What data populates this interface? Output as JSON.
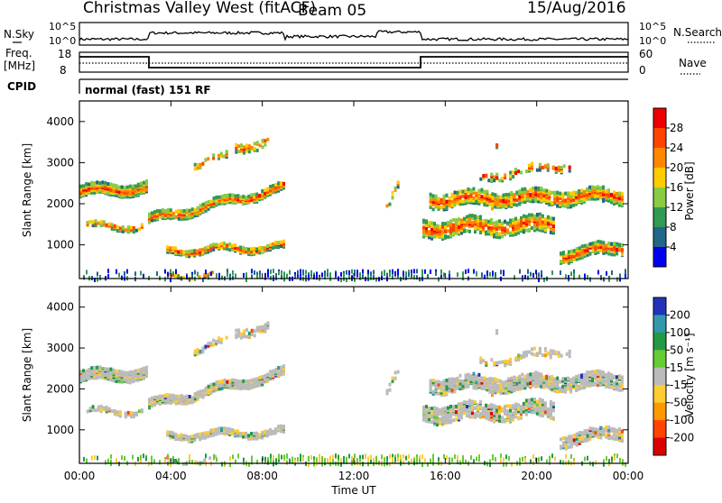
{
  "header": {
    "site": "Christmas Valley West (fitACF)",
    "beam": "Beam 05",
    "date": "15/Aug/2016"
  },
  "top_panels": {
    "nsky_label": "N.Sky",
    "nsearch_label": "N.Search",
    "nsky_ticks": [
      "10^5",
      "10^0"
    ],
    "nsky_right_ticks": [
      "10^5",
      "10^0"
    ],
    "freq_label": [
      "Freq.",
      "[MHz]"
    ],
    "freq_ticks": [
      "18",
      "8"
    ],
    "nave_label": "Nave",
    "nave_ticks": [
      "60",
      "0"
    ],
    "cpid_label": "CPID",
    "cpid_value": "normal (fast) 151 RF"
  },
  "chart_data": [
    {
      "type": "heatmap",
      "name": "power",
      "ylabel": "Slant Range [km]",
      "ylim": [
        180,
        4500
      ],
      "yticks": [
        1000,
        2000,
        3000,
        4000
      ],
      "xlabel": "",
      "xlim": [
        0,
        24
      ],
      "colorbar": {
        "label": "Power [dB]",
        "ticks": [
          "28",
          "24",
          "20",
          "16",
          "12",
          "8",
          "4"
        ],
        "colors": [
          "#ee0000",
          "#ff4400",
          "#ff8800",
          "#ffcc00",
          "#88cc44",
          "#339955",
          "#226688",
          "#0000ee"
        ]
      }
    },
    {
      "type": "heatmap",
      "name": "velocity",
      "ylabel": "Slant Range [km]",
      "ylim": [
        180,
        4500
      ],
      "yticks": [
        1000,
        2000,
        3000,
        4000
      ],
      "xlabel": "Time UT",
      "xlim": [
        0,
        24
      ],
      "xticks": [
        "00:00",
        "04:00",
        "08:00",
        "12:00",
        "16:00",
        "20:00",
        "00:00"
      ],
      "colorbar": {
        "label": "Velocity [m s⁻¹]",
        "ticks": [
          "200",
          "100",
          "50",
          "15",
          "-15",
          "-50",
          "-100",
          "-200"
        ],
        "colors": [
          "#2233bb",
          "#3399aa",
          "#229944",
          "#66cc33",
          "#bbbbbb",
          "#ffcc33",
          "#ff9900",
          "#ff4400",
          "#dd0000"
        ]
      }
    }
  ]
}
